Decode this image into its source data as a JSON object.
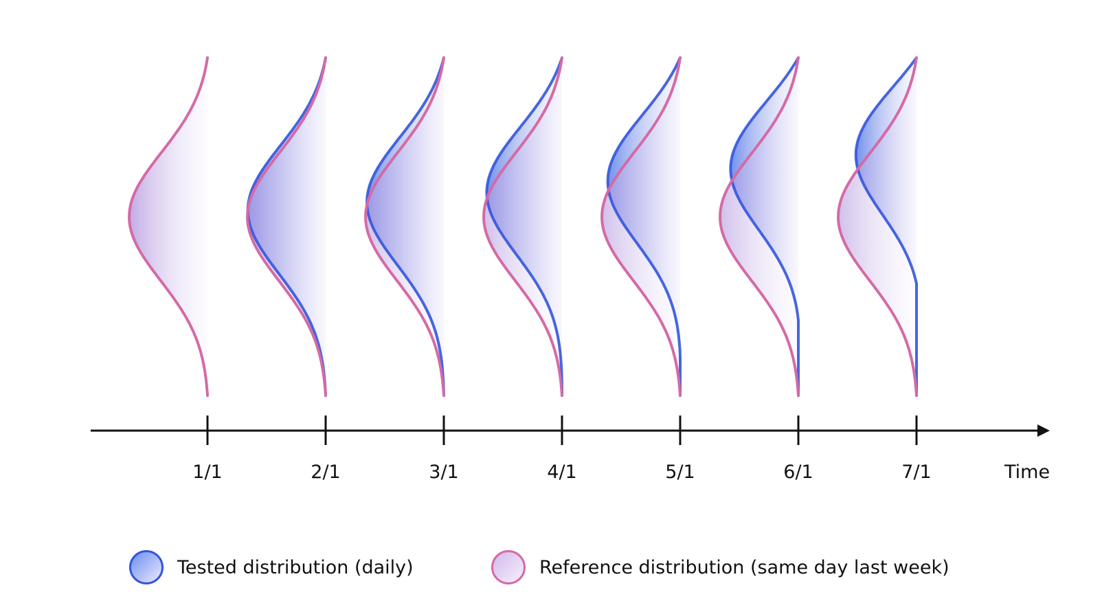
{
  "axis": {
    "title": "Time"
  },
  "ticks": [
    "1/1",
    "2/1",
    "3/1",
    "4/1",
    "5/1",
    "6/1",
    "7/1"
  ],
  "legend": {
    "tested": "Tested distribution (daily)",
    "reference": "Reference distribution (same day last week)"
  },
  "colors": {
    "tested": "#3355dd",
    "reference": "#d46aa6",
    "axis": "#111111"
  }
}
